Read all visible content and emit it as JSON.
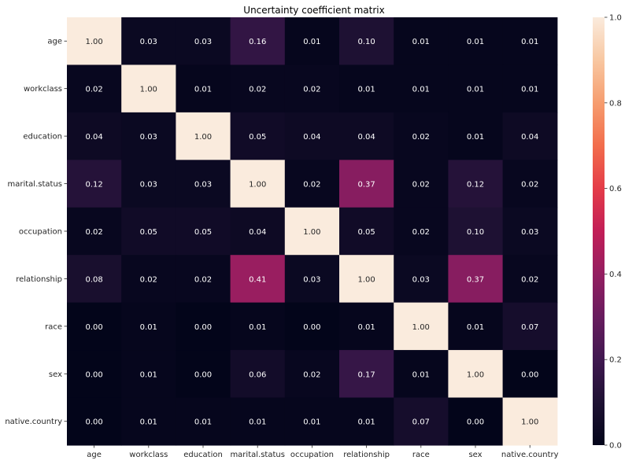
{
  "chart_data": {
    "type": "heatmap",
    "title": "Uncertainty coefficient matrix",
    "xlabel": "",
    "ylabel": "",
    "row_labels": [
      "age",
      "workclass",
      "education",
      "marital.status",
      "occupation",
      "relationship",
      "race",
      "sex",
      "native.country"
    ],
    "col_labels": [
      "age",
      "workclass",
      "education",
      "marital.status",
      "occupation",
      "relationship",
      "race",
      "sex",
      "native.country"
    ],
    "values": [
      [
        1.0,
        0.03,
        0.03,
        0.16,
        0.01,
        0.1,
        0.01,
        0.01,
        0.01
      ],
      [
        0.02,
        1.0,
        0.01,
        0.02,
        0.02,
        0.01,
        0.01,
        0.01,
        0.01
      ],
      [
        0.04,
        0.03,
        1.0,
        0.05,
        0.04,
        0.04,
        0.02,
        0.01,
        0.04
      ],
      [
        0.12,
        0.03,
        0.03,
        1.0,
        0.02,
        0.37,
        0.02,
        0.12,
        0.02
      ],
      [
        0.02,
        0.05,
        0.05,
        0.04,
        1.0,
        0.05,
        0.02,
        0.1,
        0.03
      ],
      [
        0.08,
        0.02,
        0.02,
        0.41,
        0.03,
        1.0,
        0.03,
        0.37,
        0.02
      ],
      [
        0.0,
        0.01,
        0.0,
        0.01,
        0.0,
        0.01,
        1.0,
        0.01,
        0.07
      ],
      [
        0.0,
        0.01,
        0.0,
        0.06,
        0.02,
        0.17,
        0.01,
        1.0,
        0.0
      ],
      [
        0.0,
        0.01,
        0.01,
        0.01,
        0.01,
        0.01,
        0.07,
        0.0,
        1.0
      ]
    ],
    "value_format": "0.00",
    "colormap": "rocket",
    "colorbar": {
      "range": [
        0,
        1
      ],
      "ticks": [
        0.0,
        0.2,
        0.4,
        0.6,
        0.8,
        1.0
      ],
      "tick_labels": [
        "0.0",
        "0.2",
        "0.4",
        "0.6",
        "0.8",
        "1.0"
      ]
    },
    "grid": false,
    "legend": "colorbar-right"
  }
}
